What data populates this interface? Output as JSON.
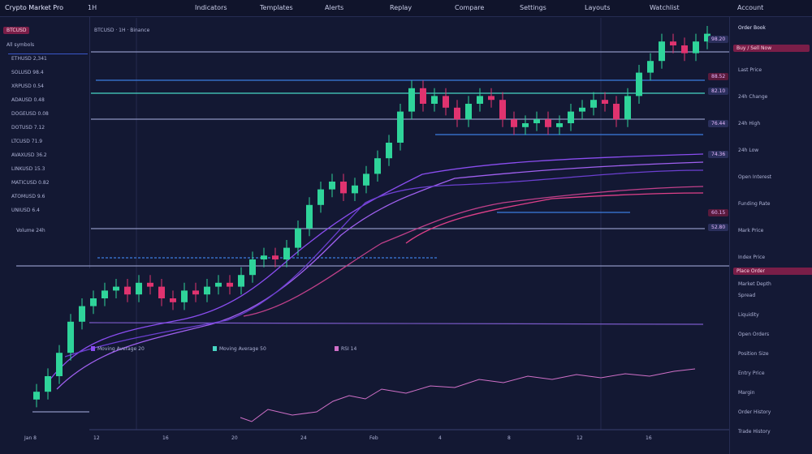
{
  "toolbar": {
    "symbol": "Crypto Market Pro",
    "interval": "1H",
    "items": [
      "Indicators",
      "Templates",
      "Alerts",
      "Replay",
      "Compare",
      "Settings",
      "Layouts",
      "Watchlist"
    ],
    "account": "Account"
  },
  "watchlist": {
    "tab": "BTCUSD",
    "filter": "All symbols",
    "rows": [
      "ETHUSD  2,341",
      "SOLUSD  98.4",
      "XRPUSD  0.54",
      "ADAUSD  0.48",
      "DOGEUSD  0.08",
      "DOTUSD  7.12",
      "LTCUSD  71.9",
      "AVAXUSD  36.2",
      "LINKUSD  15.3",
      "MATICUSD  0.82",
      "ATOMUSD  9.6",
      "UNIUSD  6.4"
    ],
    "summary": "Volume 24h"
  },
  "chart": {
    "type": "candlestick",
    "legend": "BTCUSD · 1H · Binance",
    "ylim": [
      0,
      100
    ],
    "open": [
      4,
      6,
      10,
      16,
      24,
      28,
      30,
      32,
      33,
      31,
      34,
      33,
      30,
      29,
      32,
      31,
      33,
      34,
      33,
      36,
      40,
      41,
      40,
      43,
      48,
      54,
      58,
      60,
      57,
      59,
      62,
      66,
      70,
      78,
      84,
      80,
      82,
      79,
      76,
      80,
      82,
      81,
      76,
      74,
      75,
      76,
      74,
      75,
      78,
      79,
      81,
      80,
      76,
      82,
      88,
      91,
      96,
      95,
      93,
      96
    ],
    "high": [
      8,
      12,
      18,
      26,
      30,
      32,
      34,
      35,
      35,
      36,
      36,
      35,
      32,
      34,
      34,
      35,
      36,
      36,
      38,
      42,
      43,
      43,
      45,
      50,
      56,
      60,
      62,
      62,
      61,
      64,
      68,
      72,
      80,
      86,
      86,
      84,
      84,
      81,
      82,
      84,
      84,
      83,
      78,
      77,
      78,
      78,
      77,
      80,
      81,
      83,
      83,
      82,
      84,
      90,
      93,
      98,
      98,
      97,
      98,
      100
    ],
    "low": [
      2,
      4,
      8,
      14,
      22,
      26,
      28,
      30,
      29,
      29,
      31,
      28,
      27,
      27,
      29,
      29,
      31,
      31,
      31,
      34,
      38,
      38,
      38,
      41,
      46,
      52,
      56,
      55,
      55,
      57,
      60,
      64,
      68,
      76,
      78,
      78,
      77,
      74,
      74,
      78,
      79,
      74,
      72,
      72,
      73,
      72,
      72,
      73,
      76,
      77,
      78,
      74,
      74,
      80,
      86,
      89,
      93,
      91,
      91,
      94
    ],
    "close": [
      6,
      10,
      16,
      24,
      28,
      30,
      32,
      33,
      31,
      34,
      33,
      30,
      29,
      32,
      31,
      33,
      34,
      33,
      36,
      40,
      41,
      40,
      43,
      48,
      54,
      58,
      60,
      57,
      59,
      62,
      66,
      70,
      78,
      84,
      80,
      82,
      79,
      76,
      80,
      82,
      81,
      76,
      74,
      75,
      76,
      74,
      75,
      78,
      79,
      81,
      80,
      76,
      82,
      88,
      91,
      96,
      95,
      93,
      96,
      98
    ],
    "price_tags": [
      "98.20",
      "88.52",
      "82.10",
      "76.44",
      "74.36",
      "60.15",
      "52.80"
    ],
    "indicators": [
      "Moving Average 20",
      "Moving Average 50",
      "RSI 14"
    ],
    "time_labels": [
      "Jan 8",
      "12",
      "16",
      "20",
      "24",
      "Feb",
      "4",
      "8",
      "12",
      "16"
    ]
  },
  "right_panel": {
    "header": "Order Book",
    "button": "Buy / Sell Now",
    "items": [
      "Last Price",
      "24h Change",
      "24h High",
      "24h Low",
      "Open Interest",
      "Funding Rate",
      "Mark Price",
      "Index Price",
      "Market Depth",
      "Spread",
      "Liquidity",
      "Open Orders",
      "Position Size",
      "Entry Price",
      "Margin",
      "Order History",
      "Trade History"
    ],
    "button2": "Place Order"
  }
}
